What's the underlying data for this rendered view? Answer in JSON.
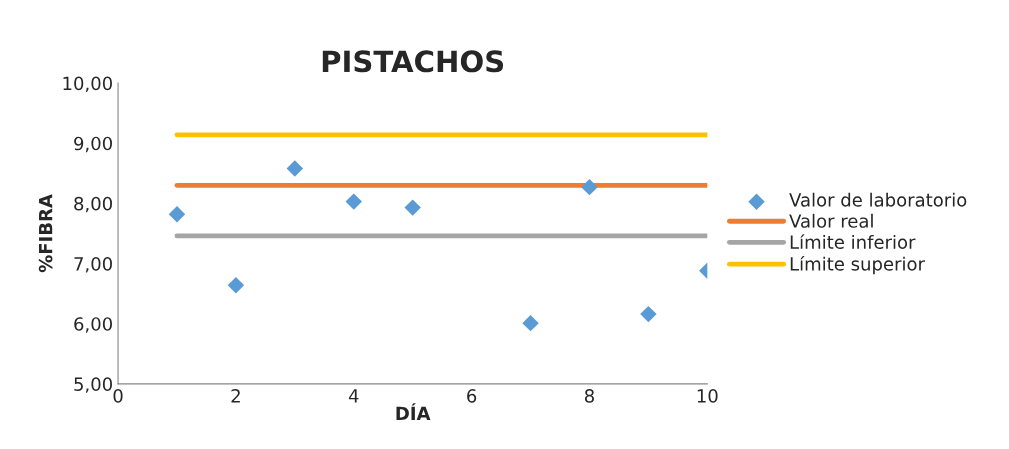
{
  "chart_data": {
    "type": "scatter",
    "title": "PISTACHOS",
    "xlabel": "DÍA",
    "ylabel": "%FIBRA",
    "xlim": [
      0,
      10
    ],
    "xticks": [
      0,
      2,
      4,
      6,
      8,
      10
    ],
    "ylim": [
      5,
      10
    ],
    "yticks": [
      {
        "value": 5,
        "label": "5,00"
      },
      {
        "value": 6,
        "label": "6,00"
      },
      {
        "value": 7,
        "label": "7,00"
      },
      {
        "value": 8,
        "label": "8,00"
      },
      {
        "value": 9,
        "label": "9,00"
      },
      {
        "value": 10,
        "label": "10,00"
      }
    ],
    "grid": false,
    "legend": "right",
    "series": [
      {
        "name": "Valor de laboratorio",
        "marker": "diamond",
        "color": "#5b9bd5",
        "x": [
          1,
          2,
          3,
          4,
          5,
          7,
          8,
          9,
          10
        ],
        "values": [
          7.82,
          6.64,
          8.58,
          8.03,
          7.93,
          6.01,
          8.27,
          6.16,
          6.88
        ]
      },
      {
        "name": "Valor real",
        "type": "line",
        "marker": "none",
        "color": "#ed7d31",
        "x": [
          1,
          10
        ],
        "values": [
          8.3,
          8.3
        ]
      },
      {
        "name": "Límite inferior",
        "type": "line",
        "marker": "none",
        "color": "#a5a5a5",
        "x": [
          1,
          10
        ],
        "values": [
          7.46,
          7.46
        ]
      },
      {
        "name": "Límite superior",
        "type": "line",
        "marker": "none",
        "color": "#ffc000",
        "x": [
          1,
          10
        ],
        "values": [
          9.14,
          9.14
        ]
      }
    ]
  }
}
